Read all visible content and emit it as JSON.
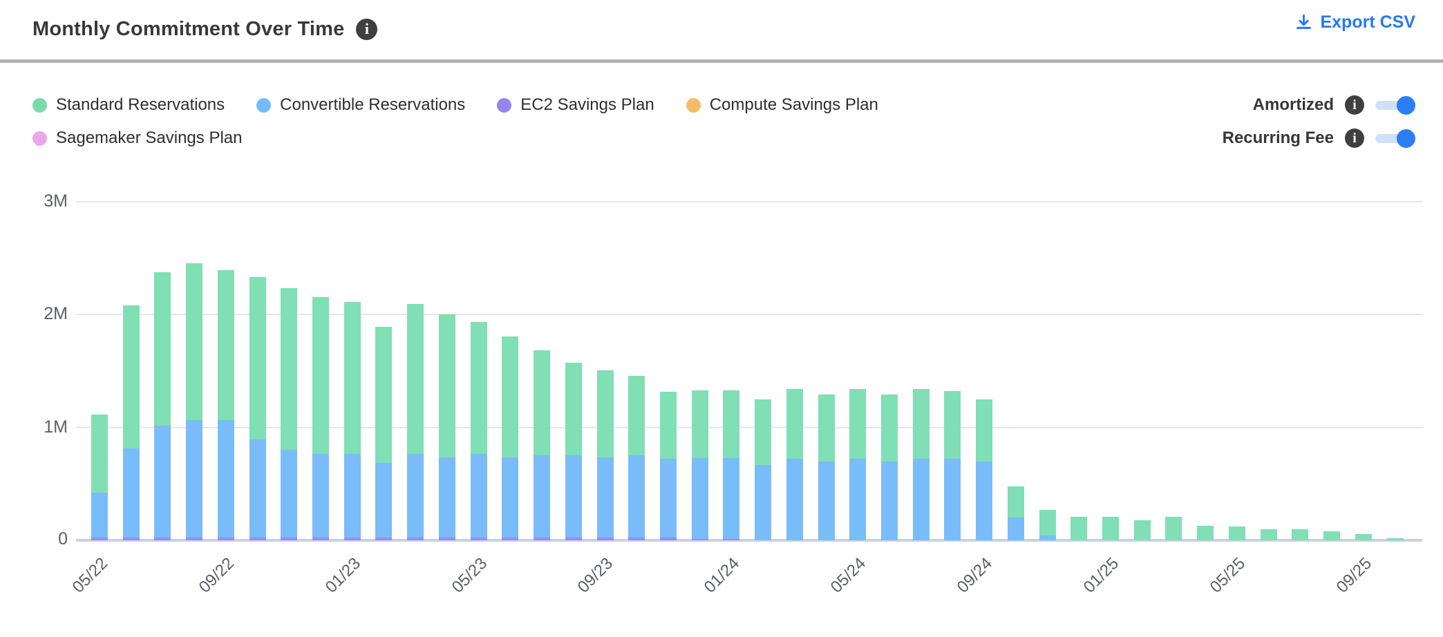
{
  "header": {
    "title": "Monthly Commitment Over Time",
    "info_icon": "info-icon",
    "export_icon": "download-icon",
    "export_label": "Export CSV"
  },
  "legend": {
    "items": [
      {
        "label": "Standard Reservations",
        "color": "#79dbad"
      },
      {
        "label": "Convertible Reservations",
        "color": "#75bafa"
      },
      {
        "label": "EC2 Savings Plan",
        "color": "#9486ef"
      },
      {
        "label": "Compute Savings Plan",
        "color": "#f4bb68"
      },
      {
        "label": "Sagemaker Savings Plan",
        "color": "#eba7e9"
      }
    ]
  },
  "toggles": [
    {
      "label": "Amortized",
      "state": "on"
    },
    {
      "label": "Recurring Fee",
      "state": "on"
    }
  ],
  "colors": {
    "accent_blue": "#2679f0",
    "toggle_track": "#cfe0f8",
    "toggle_knob": "#2b7ff2",
    "gridline": "#e7e7e7",
    "baseline": "#c9d0e4",
    "divider": "#b1b1b1",
    "title_text": "#393939",
    "tick_text": "#5b5f66"
  },
  "chart_data": {
    "type": "bar",
    "stacked": true,
    "title": "Monthly Commitment Over Time",
    "unit": "millions",
    "ylim": [
      0,
      3
    ],
    "ytick_labels": [
      "0",
      "1M",
      "2M",
      "3M"
    ],
    "grid": "horizontal",
    "legend_position": "top-left",
    "x": [
      "05/22",
      "06/22",
      "07/22",
      "08/22",
      "09/22",
      "10/22",
      "11/22",
      "12/22",
      "01/23",
      "02/23",
      "03/23",
      "04/23",
      "05/23",
      "06/23",
      "07/23",
      "08/23",
      "09/23",
      "10/23",
      "11/23",
      "12/23",
      "01/24",
      "02/24",
      "03/24",
      "04/24",
      "05/24",
      "06/24",
      "07/24",
      "08/24",
      "09/24",
      "10/24",
      "11/24",
      "12/24",
      "01/25",
      "02/25",
      "03/25",
      "04/25",
      "05/25",
      "06/25",
      "07/25",
      "08/25",
      "09/25",
      "10/25"
    ],
    "x_tick_every": 4,
    "stack_order_bottom_to_top": [
      "EC2 Savings Plan",
      "Convertible Reservations",
      "Standard Reservations",
      "Compute Savings Plan",
      "Sagemaker Savings Plan"
    ],
    "series": [
      {
        "name": "Standard Reservations",
        "color": "#80dfb4",
        "values": [
          0.69,
          1.27,
          1.36,
          1.39,
          1.33,
          1.44,
          1.43,
          1.39,
          1.35,
          1.21,
          1.33,
          1.27,
          1.17,
          1.07,
          0.93,
          0.82,
          0.77,
          0.7,
          0.59,
          0.6,
          0.6,
          0.58,
          0.62,
          0.59,
          0.62,
          0.59,
          0.62,
          0.6,
          0.55,
          0.28,
          0.23,
          0.21,
          0.21,
          0.18,
          0.21,
          0.13,
          0.12,
          0.1,
          0.1,
          0.08,
          0.055,
          0.02
        ]
      },
      {
        "name": "Convertible Reservations",
        "color": "#79bcfa",
        "values": [
          0.4,
          0.79,
          0.99,
          1.04,
          1.04,
          0.87,
          0.78,
          0.74,
          0.74,
          0.66,
          0.74,
          0.71,
          0.74,
          0.71,
          0.73,
          0.73,
          0.71,
          0.73,
          0.7,
          0.72,
          0.72,
          0.67,
          0.72,
          0.7,
          0.72,
          0.7,
          0.72,
          0.72,
          0.7,
          0.2,
          0.04,
          0,
          0,
          0,
          0,
          0,
          0,
          0,
          0,
          0,
          0,
          0
        ]
      },
      {
        "name": "EC2 Savings Plan",
        "color": "#9b8bf4",
        "values": [
          0.025,
          0.025,
          0.025,
          0.025,
          0.025,
          0.025,
          0.025,
          0.025,
          0.025,
          0.025,
          0.025,
          0.025,
          0.025,
          0.025,
          0.025,
          0.025,
          0.025,
          0.025,
          0.025,
          0.01,
          0.01,
          0,
          0,
          0,
          0,
          0,
          0,
          0,
          0,
          0,
          0,
          0,
          0,
          0,
          0,
          0,
          0,
          0,
          0,
          0,
          0,
          0
        ]
      },
      {
        "name": "Compute Savings Plan",
        "color": "#f4bb68",
        "values": [
          0,
          0,
          0,
          0,
          0,
          0,
          0,
          0,
          0,
          0,
          0,
          0,
          0,
          0,
          0,
          0,
          0,
          0,
          0,
          0,
          0,
          0,
          0,
          0,
          0,
          0,
          0,
          0,
          0,
          0,
          0,
          0,
          0,
          0,
          0,
          0,
          0,
          0,
          0,
          0,
          0,
          0
        ]
      },
      {
        "name": "Sagemaker Savings Plan",
        "color": "#eba7e9",
        "values": [
          0,
          0,
          0,
          0,
          0,
          0,
          0,
          0,
          0,
          0,
          0,
          0,
          0,
          0,
          0,
          0,
          0,
          0,
          0,
          0,
          0,
          0,
          0,
          0,
          0,
          0,
          0,
          0,
          0,
          0,
          0,
          0,
          0,
          0,
          0,
          0,
          0,
          0,
          0,
          0,
          0,
          0
        ]
      }
    ]
  }
}
